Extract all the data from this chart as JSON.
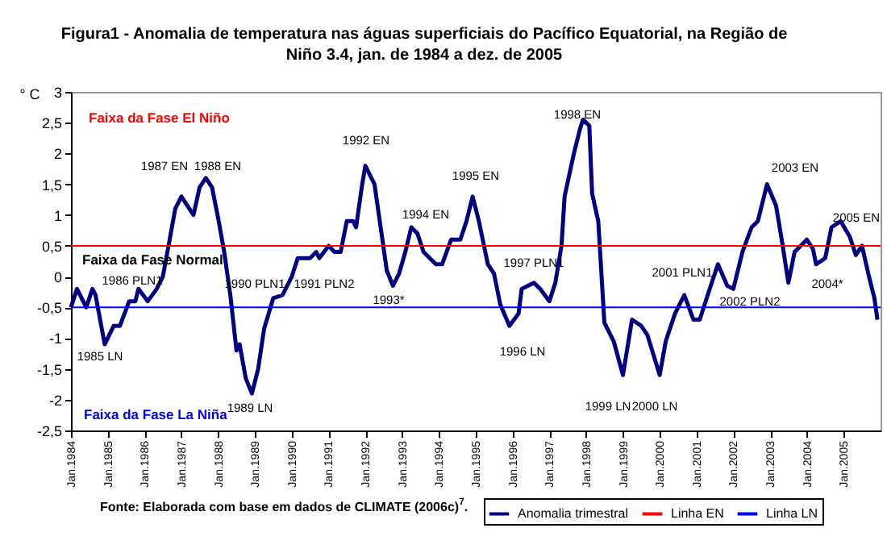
{
  "chart_data": {
    "type": "line",
    "title": "Figura1  -  Anomalia de temperatura nas águas superficiais do Pacífico Equatorial, na Região de Niño 3.4,  jan. de 1984 a dez. de 2005",
    "ylabel": "° C",
    "x": [
      "1984-01",
      "1984-03",
      "1984-06",
      "1984-08",
      "1984-09",
      "1984-12",
      "1985-03",
      "1985-05",
      "1985-08",
      "1985-10",
      "1985-11",
      "1986-02",
      "1986-05",
      "1986-07",
      "1986-09",
      "1986-11",
      "1987-01",
      "1987-05",
      "1987-07",
      "1987-09",
      "1987-11",
      "1988-01",
      "1988-03",
      "1988-05",
      "1988-07",
      "1988-08",
      "1988-10",
      "1988-12",
      "1989-02",
      "1989-04",
      "1989-07",
      "1989-10",
      "1990-01",
      "1990-03",
      "1990-07",
      "1990-09",
      "1990-10",
      "1991-01",
      "1991-03",
      "1991-05",
      "1991-07",
      "1991-09",
      "1991-10",
      "1991-12",
      "1992-01",
      "1992-04",
      "1992-06",
      "1992-08",
      "1992-10",
      "1992-12",
      "1993-02",
      "1993-04",
      "1993-06",
      "1993-08",
      "1993-10",
      "1993-12",
      "1994-02",
      "1994-05",
      "1994-08",
      "1994-10",
      "1994-12",
      "1995-02",
      "1995-05",
      "1995-07",
      "1995-09",
      "1995-12",
      "1996-03",
      "1996-04",
      "1996-08",
      "1996-10",
      "1997-01",
      "1997-03",
      "1997-05",
      "1997-06",
      "1997-09",
      "1997-11",
      "1997-12",
      "1998-02",
      "1998-03",
      "1998-05",
      "1998-07",
      "1998-10",
      "1999-01",
      "1999-04",
      "1999-07",
      "1999-09",
      "2000-01",
      "2000-03",
      "2000-06",
      "2000-09",
      "2000-12",
      "2001-02",
      "2001-05",
      "2001-08",
      "2001-11",
      "2002-01",
      "2002-04",
      "2002-07",
      "2002-09",
      "2002-12",
      "2003-03",
      "2003-05",
      "2003-07",
      "2003-09",
      "2004-01",
      "2004-03",
      "2004-04",
      "2004-07",
      "2004-09",
      "2004-12",
      "2005-03",
      "2005-05",
      "2005-07",
      "2005-09",
      "2005-11",
      "2005-12"
    ],
    "series": [
      {
        "name": "Anomalia trimestral",
        "color": "#000080",
        "values": [
          -0.5,
          -0.2,
          -0.5,
          -0.2,
          -0.3,
          -1.1,
          -0.8,
          -0.8,
          -0.4,
          -0.4,
          -0.2,
          -0.4,
          -0.2,
          0,
          0.55,
          1.1,
          1.3,
          1.0,
          1.45,
          1.6,
          1.45,
          0.95,
          0.4,
          -0.3,
          -1.2,
          -1.1,
          -1.65,
          -1.9,
          -1.5,
          -0.85,
          -0.35,
          -0.3,
          0,
          0.3,
          0.3,
          0.4,
          0.3,
          0.5,
          0.4,
          0.4,
          0.9,
          0.9,
          0.8,
          1.5,
          1.8,
          1.5,
          0.8,
          0.1,
          -0.15,
          0.05,
          0.4,
          0.8,
          0.7,
          0.4,
          0.3,
          0.2,
          0.2,
          0.6,
          0.6,
          0.9,
          1.3,
          0.9,
          0.2,
          0.05,
          -0.45,
          -0.8,
          -0.6,
          -0.2,
          -0.1,
          -0.2,
          -0.4,
          -0.1,
          0.5,
          1.3,
          2.0,
          2.4,
          2.55,
          2.45,
          1.35,
          0.9,
          -0.75,
          -1.05,
          -1.6,
          -0.7,
          -0.8,
          -0.95,
          -1.6,
          -1.05,
          -0.6,
          -0.3,
          -0.7,
          -0.7,
          -0.25,
          0.2,
          -0.15,
          -0.2,
          0.4,
          0.8,
          0.9,
          1.5,
          1.15,
          0.55,
          -0.1,
          0.4,
          0.6,
          0.45,
          0.2,
          0.3,
          0.8,
          0.9,
          0.65,
          0.35,
          0.5,
          0.05,
          -0.35,
          -0.7
        ]
      }
    ],
    "xlim": [
      "1984-01",
      "2006-01"
    ],
    "xticks": [
      {
        "value": "1984-01",
        "label": "Jan.1984"
      },
      {
        "value": "1985-01",
        "label": "Jan.1985"
      },
      {
        "value": "1986-01",
        "label": "Jan.1986"
      },
      {
        "value": "1987-01",
        "label": "Jan.1987"
      },
      {
        "value": "1988-01",
        "label": "Jan.1988"
      },
      {
        "value": "1989-01",
        "label": "Jan.1989"
      },
      {
        "value": "1990-01",
        "label": "Jan.1990"
      },
      {
        "value": "1991-01",
        "label": "Jan.1991"
      },
      {
        "value": "1992-01",
        "label": "Jan.1992"
      },
      {
        "value": "1993-01",
        "label": "Jan.1993"
      },
      {
        "value": "1994-01",
        "label": "Jan.1994"
      },
      {
        "value": "1995-01",
        "label": "Jan.1995"
      },
      {
        "value": "1996-01",
        "label": "Jan.1996"
      },
      {
        "value": "1997-01",
        "label": "Jan.1997"
      },
      {
        "value": "1998-01",
        "label": "Jan.1998"
      },
      {
        "value": "1999-01",
        "label": "Jan.1999"
      },
      {
        "value": "2000-01",
        "label": "Jan.2000"
      },
      {
        "value": "2001-01",
        "label": "Jan.2001"
      },
      {
        "value": "2002-01",
        "label": "Jan.2002"
      },
      {
        "value": "2003-01",
        "label": "Jan.2003"
      },
      {
        "value": "2004-01",
        "label": "Jan.2004"
      },
      {
        "value": "2005-01",
        "label": "Jan.2005"
      }
    ],
    "ylim": [
      -2.5,
      3
    ],
    "yticks": [
      {
        "value": -2.5,
        "label": "-2,5"
      },
      -2,
      {
        "value": -1.5,
        "label": "-1,5"
      },
      -1,
      {
        "value": -0.5,
        "label": "-0,5"
      },
      0,
      {
        "value": 0.5,
        "label": "0,5"
      },
      1,
      {
        "value": 1.5,
        "label": "1,5"
      },
      2,
      {
        "value": 2.5,
        "label": "2,5"
      },
      3
    ],
    "ref_lines": [
      {
        "axis": "y",
        "value": 0.5,
        "label": "Linha EN",
        "color": "#ff0000"
      },
      {
        "axis": "y",
        "value": -0.5,
        "label": "Linha LN",
        "color": "#0000ff"
      }
    ],
    "annotations": [
      "Faixa da Fase El Niño",
      "Faixa da Fase Normal",
      "Faixa da Fase La Niña",
      "1985 LN",
      "1986 PLN1",
      "1987 EN",
      "1988 EN",
      "1989 LN",
      "1990 PLN1",
      "1991 PLN2",
      "1992 EN",
      "1993*",
      "1994 EN",
      "1995 EN",
      "1996 LN",
      "1997 PLN1",
      "1998 EN",
      "1999 LN",
      "2000 LN",
      "2001 PLN1",
      "2002 PLN2",
      "2003 EN",
      "2004*",
      "2005 EN",
      "Fonte: Elaborada com base em  dados de  CLIMATE (2006c)$^{7}$."
    ],
    "legend": "bottom"
  }
}
